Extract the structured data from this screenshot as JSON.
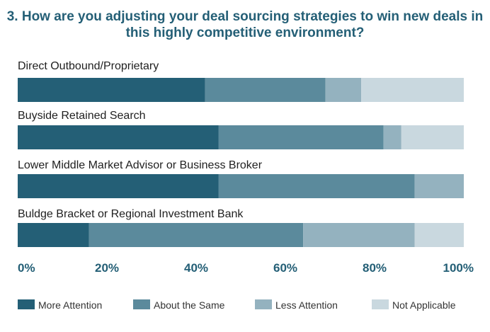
{
  "chart_data": {
    "type": "bar",
    "orientation": "horizontal-stacked-100",
    "title": "3. How are you adjusting your deal sourcing strategies to win new deals in this highly competitive environment?",
    "categories": [
      "Direct Outbound/Proprietary",
      "Buyside Retained Search",
      "Lower Middle Market Advisor or Business Broker",
      "Buldge Bracket or Regional Investment Bank"
    ],
    "series": [
      {
        "name": "More Attention",
        "color": "#245f76",
        "values": [
          42,
          45,
          45,
          16
        ]
      },
      {
        "name": "About the Same",
        "color": "#5b8a9c",
        "values": [
          27,
          37,
          44,
          48
        ]
      },
      {
        "name": "Less Attention",
        "color": "#94b2bf",
        "values": [
          8,
          4,
          11,
          25
        ]
      },
      {
        "name": "Not Applicable",
        "color": "#c9d8df",
        "values": [
          23,
          14,
          0,
          11
        ]
      }
    ],
    "xlim": [
      0,
      100
    ],
    "xticks": [
      "0%",
      "20%",
      "40%",
      "60%",
      "80%",
      "100%"
    ],
    "legend": "bottom",
    "grid": false
  }
}
